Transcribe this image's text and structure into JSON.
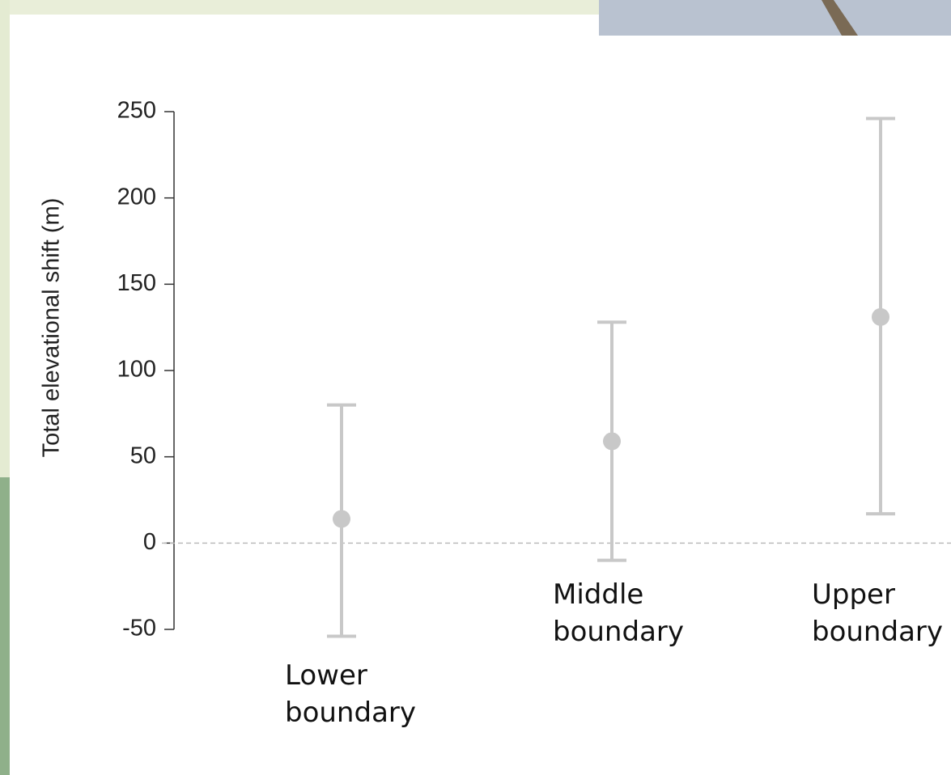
{
  "chart_data": {
    "type": "errorbar",
    "y_label": "Total elevational shift (m)",
    "categories": [
      "Lower boundary",
      "Middle boundary",
      "Upper boundary"
    ],
    "values": [
      14,
      59,
      131
    ],
    "lower": [
      -54,
      -10,
      17
    ],
    "upper": [
      80,
      128,
      246
    ],
    "color": "#c8c8c8",
    "ylim": [
      -50,
      250
    ],
    "yticks": [
      -50,
      0,
      50,
      100,
      150,
      200,
      250
    ],
    "reference_line": 0
  }
}
